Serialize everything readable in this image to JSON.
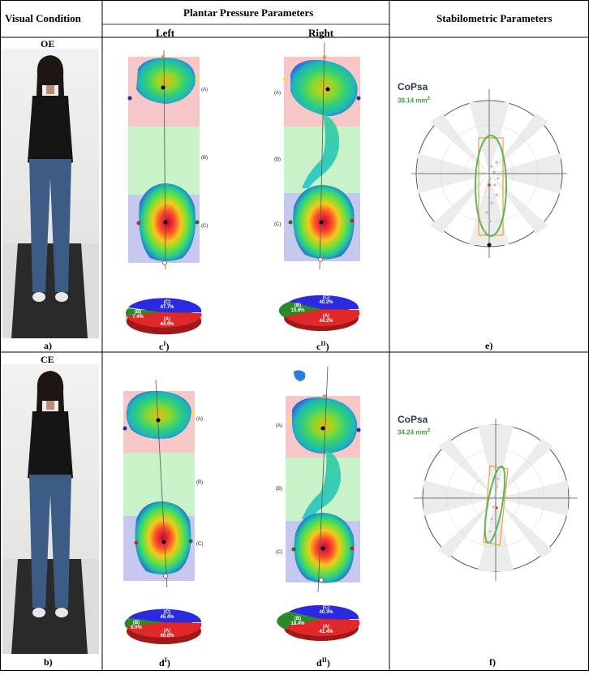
{
  "header": {
    "visual_condition": "Visual Condition",
    "plantar": "Plantar Pressure Parameters",
    "stabilometric": "Stabilometric Parameters",
    "left": "Left",
    "right": "Right"
  },
  "rows": [
    {
      "condition": "OE",
      "photo_label": "a)",
      "left_label": "c",
      "left_sup": "I",
      "right_label": "c",
      "right_sup": "II",
      "stab_label": "e)",
      "cop_title": "CoPsa",
      "cop_value": "38.14 mm",
      "cop_exp": "2",
      "left_pie": {
        "A": "44.9%",
        "B": "7.4%",
        "C": "47.7%"
      },
      "right_pie": {
        "A": "44.2%",
        "B": "15.6%",
        "C": "40.2%"
      }
    },
    {
      "condition": "CE",
      "photo_label": "b)",
      "left_label": "d",
      "left_sup": "I",
      "right_label": "d",
      "right_sup": "II",
      "stab_label": "f)",
      "cop_title": "CoPsa",
      "cop_value": "34.24 mm",
      "cop_exp": "2",
      "left_pie": {
        "A": "46.6%",
        "B": "8.0%",
        "C": "45.4%"
      },
      "right_pie": {
        "A": "41.4%",
        "B": "18.4%",
        "C": "40.3%"
      }
    }
  ],
  "region_labels": {
    "A": "(A)",
    "B": "(B)",
    "C": "(C)"
  },
  "colors": {
    "zone_a": "#f7c6c6",
    "zone_b": "#c8f2c8",
    "zone_c": "#c6c8f0",
    "ellipse": "#5fb55f",
    "box": "#f0a030"
  }
}
